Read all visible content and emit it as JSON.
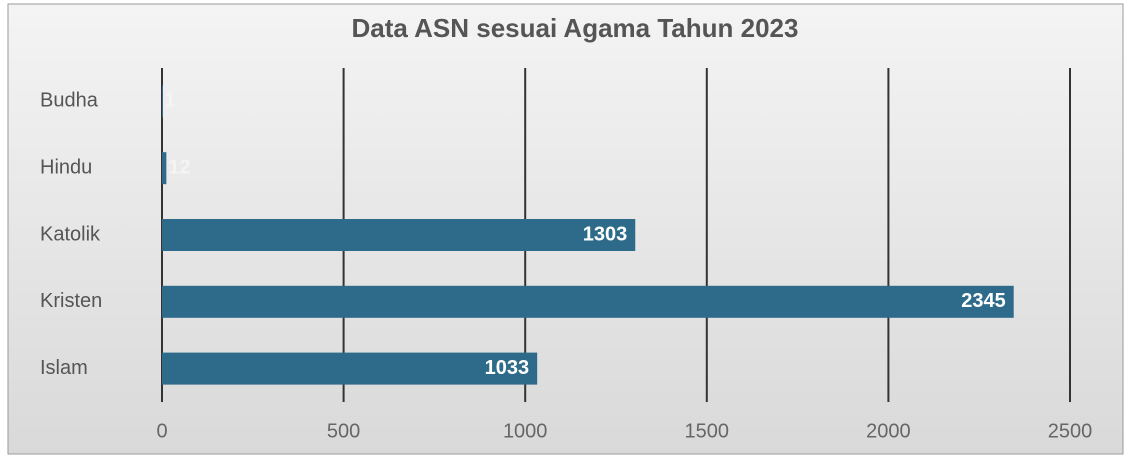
{
  "chart_data": {
    "type": "bar",
    "orientation": "horizontal",
    "title": "Data ASN sesuai Agama Tahun 2023",
    "categories": [
      "Budha",
      "Hindu",
      "Katolik",
      "Kristen",
      "Islam"
    ],
    "values": [
      1,
      12,
      1303,
      2345,
      1033
    ],
    "color": "#2e6b8a",
    "xlim": [
      0,
      2500
    ],
    "xticks": [
      0,
      500,
      1000,
      1500,
      2000,
      2500
    ],
    "grid": true
  }
}
